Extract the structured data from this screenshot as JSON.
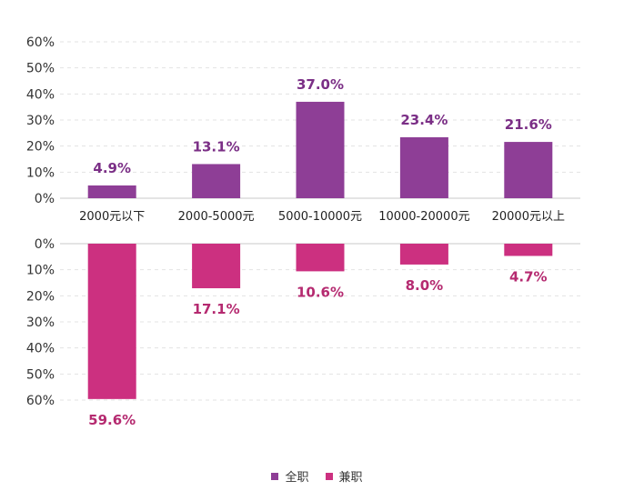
{
  "chart_data": {
    "type": "bar",
    "categories": [
      "2000元以下",
      "2000-5000元",
      "5000-10000元",
      "10000-20000元",
      "20000元以上"
    ],
    "series": [
      {
        "name": "全职",
        "values": [
          4.9,
          13.1,
          37.0,
          23.4,
          21.6
        ],
        "labels": [
          "4.9%",
          "13.1%",
          "37.0%",
          "23.4%",
          "21.6%"
        ],
        "color": "#8e3e96",
        "label_color": "#7b2f86"
      },
      {
        "name": "兼职",
        "values": [
          59.6,
          17.1,
          10.6,
          8.0,
          4.7
        ],
        "labels": [
          "59.6%",
          "17.1%",
          "10.6%",
          "8.0%",
          "4.7%"
        ],
        "color": "#cc3080",
        "label_color": "#b52a70"
      }
    ],
    "top_axis": {
      "ylim": [
        0,
        60
      ],
      "ticks": [
        "0%",
        "10%",
        "20%",
        "30%",
        "40%",
        "50%",
        "60%"
      ]
    },
    "bottom_axis": {
      "ylim": [
        0,
        60
      ],
      "ticks": [
        "0%",
        "10%",
        "20%",
        "30%",
        "40%",
        "50%",
        "60%"
      ],
      "inverted": true
    },
    "grid": true,
    "legend_position": "bottom"
  }
}
